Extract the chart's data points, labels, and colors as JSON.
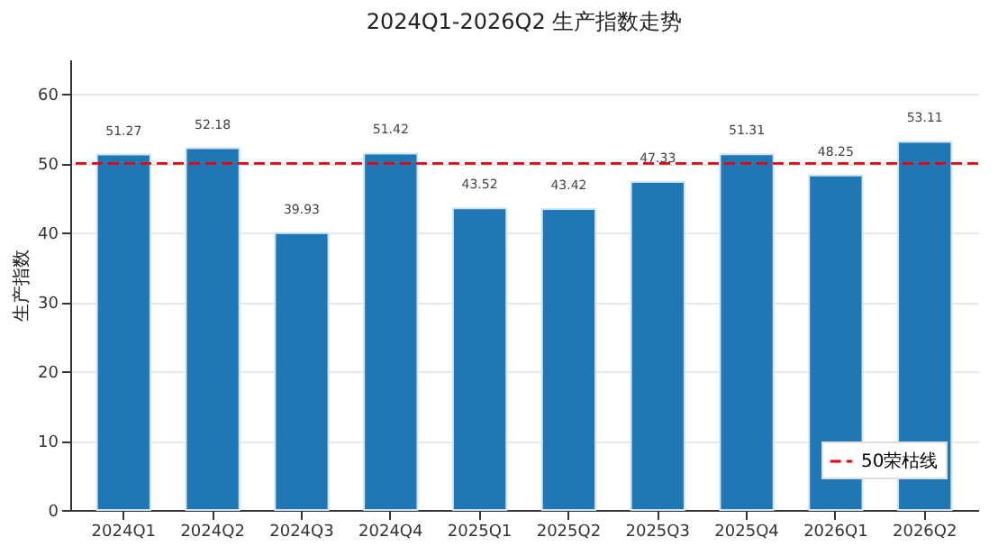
{
  "chart_data": {
    "type": "bar",
    "title": "2024Q1-2026Q2 生产指数走势",
    "ylabel": "生产指数",
    "categories": [
      "2024Q1",
      "2024Q2",
      "2024Q3",
      "2024Q4",
      "2025Q1",
      "2025Q2",
      "2025Q3",
      "2025Q4",
      "2026Q1",
      "2026Q2"
    ],
    "values": [
      51.27,
      52.18,
      39.93,
      51.42,
      43.52,
      43.42,
      47.33,
      51.31,
      48.25,
      53.11
    ],
    "color": "#1f77b4",
    "ylim": [
      0,
      65
    ],
    "yticks": [
      0,
      10,
      20,
      30,
      40,
      50,
      60
    ],
    "grid": "y",
    "data_labels": true,
    "ref_lines": [
      {
        "axis": "y",
        "value": 50,
        "label": "50荣枯线",
        "color": "#e8000b",
        "line_style": "dashed"
      }
    ],
    "legend": "bottom right"
  }
}
